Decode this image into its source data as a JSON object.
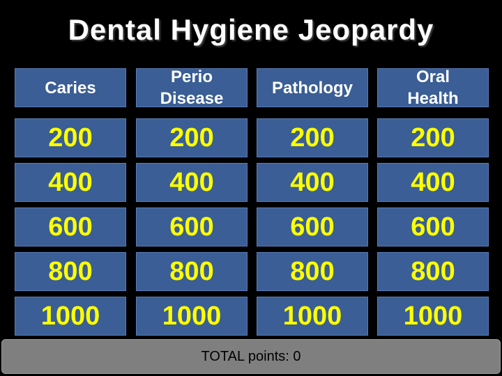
{
  "title": "Dental Hygiene Jeopardy",
  "categories": [
    {
      "line1": "Caries",
      "line2": ""
    },
    {
      "line1": "Perio",
      "line2": "Disease"
    },
    {
      "line1": "Pathology",
      "line2": ""
    },
    {
      "line1": "Oral",
      "line2": "Health"
    }
  ],
  "point_values": [
    "200",
    "400",
    "600",
    "800",
    "1000"
  ],
  "footer": {
    "label": "TOTAL points: ",
    "total": "0"
  },
  "colors": {
    "background": "#000000",
    "tile": "#3a5e95",
    "value_text": "#ffff00",
    "header_text": "#ffffff",
    "footer_bar": "#7f7f7f"
  }
}
